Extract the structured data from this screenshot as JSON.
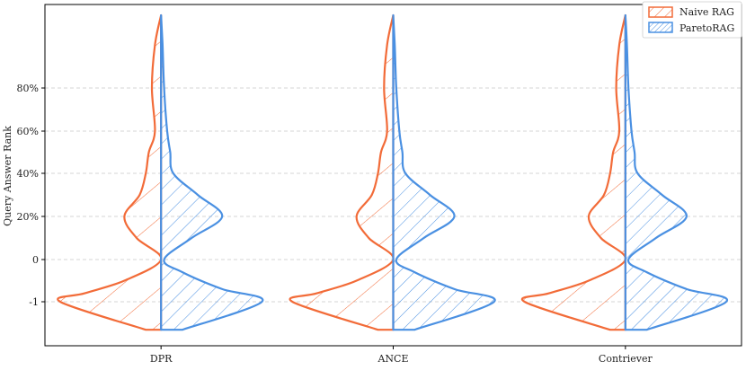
{
  "chart_data": {
    "type": "violin",
    "xlabel": "",
    "ylabel": "Query Answer Rank",
    "categories": [
      "DPR",
      "ANCE",
      "Contriever"
    ],
    "y_ticks": [
      {
        "value": -1,
        "label": "-1"
      },
      {
        "value": 0,
        "label": "0"
      },
      {
        "value": 20,
        "label": "20%"
      },
      {
        "value": 40,
        "label": "40%"
      },
      {
        "value": 60,
        "label": "60%"
      },
      {
        "value": 80,
        "label": "80%"
      }
    ],
    "y_axis_note": "categorical spacing: -1, 0, then 20%..80%",
    "ylim": [
      -1.15,
      114
    ],
    "grid": "horizontal dashed",
    "legend_position": "top-right",
    "series": [
      {
        "name": "Naive RAG",
        "side": "left",
        "color": "#f26b38",
        "hatch": "sparse diagonal",
        "density_profile": [
          {
            "rank": -1.13,
            "width": 0.05
          },
          {
            "rank": -1.0,
            "width": 0.33
          },
          {
            "rank": -0.8,
            "width": 0.25
          },
          {
            "rank": -0.5,
            "width": 0.12
          },
          {
            "rank": 0,
            "width": 0.0
          },
          {
            "rank": 10,
            "width": 0.08
          },
          {
            "rank": 20,
            "width": 0.12
          },
          {
            "rank": 30,
            "width": 0.07
          },
          {
            "rank": 40,
            "width": 0.05
          },
          {
            "rank": 50,
            "width": 0.04
          },
          {
            "rank": 60,
            "width": 0.02
          },
          {
            "rank": 80,
            "width": 0.03
          },
          {
            "rank": 100,
            "width": 0.02
          },
          {
            "rank": 114,
            "width": 0.0
          }
        ]
      },
      {
        "name": "ParetoRAG",
        "side": "right",
        "color": "#4a90e2",
        "hatch": "dense diagonal",
        "density_profile": [
          {
            "rank": -1.13,
            "width": 0.07
          },
          {
            "rank": -1.0,
            "width": 0.33
          },
          {
            "rank": -0.7,
            "width": 0.2
          },
          {
            "rank": -0.3,
            "width": 0.07
          },
          {
            "rank": 0,
            "width": 0.01
          },
          {
            "rank": 10,
            "width": 0.1
          },
          {
            "rank": 20,
            "width": 0.2
          },
          {
            "rank": 30,
            "width": 0.12
          },
          {
            "rank": 40,
            "width": 0.04
          },
          {
            "rank": 50,
            "width": 0.03
          },
          {
            "rank": 60,
            "width": 0.02
          },
          {
            "rank": 80,
            "width": 0.01
          },
          {
            "rank": 100,
            "width": 0.005
          },
          {
            "rank": 114,
            "width": 0.0
          }
        ]
      }
    ]
  }
}
